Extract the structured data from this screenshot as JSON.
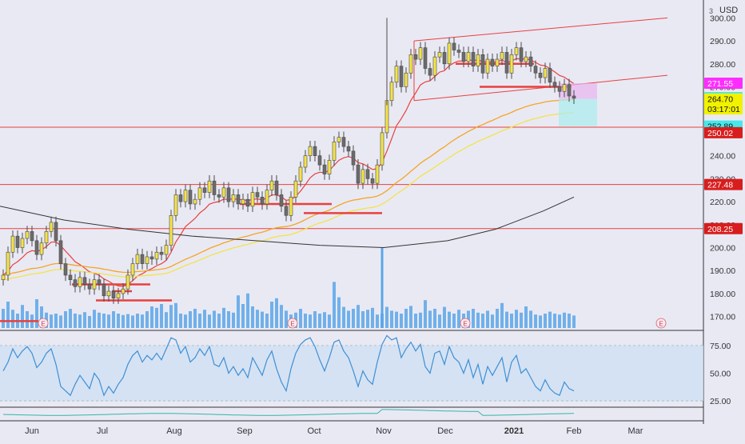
{
  "header": {
    "currency": "USD",
    "scale_mark": "3"
  },
  "colors": {
    "background": "#e9e9f4",
    "up_candle": "#f3e34a",
    "down_candle": "#6b6b6b",
    "ema_short": "#e8413d",
    "ema_mid": "#f5a524",
    "ema_long": "#f3e34a",
    "sma_long": "#333333",
    "trend_channel": "#e8413d",
    "level_line": "#e8413d",
    "volume": "#5aa6e8",
    "rsi_line": "#3d8fd6",
    "rsi_band": "#cfe0f3",
    "macd_line": "#32b6a8",
    "last_price_tag": "#46e8e8",
    "entry_tag": "#f2f200",
    "stop_tag": "#ff2cff",
    "red_tag": "#d81d1d"
  },
  "chart_data": {
    "type": "candlestick",
    "x_axis_labels": [
      "Jun",
      "Jul",
      "Aug",
      "Sep",
      "Oct",
      "Nov",
      "Dec",
      "2021",
      "Feb",
      "Mar"
    ],
    "price_ticks": [
      "300.00",
      "290.00",
      "280.00",
      "270.00",
      "260.00",
      "250.00",
      "240.00",
      "230.00",
      "220.00",
      "210.00",
      "200.00",
      "190.00",
      "180.00",
      "170.00"
    ],
    "price_range": [
      165,
      305
    ],
    "rsi_ticks": [
      "75.00",
      "50.00",
      "25.00"
    ],
    "rsi_range": [
      20,
      85
    ],
    "price_tags": [
      {
        "label": "271.55",
        "price": 271.55,
        "kind": "stop"
      },
      {
        "label": "265.30",
        "price": 265.3,
        "kind": "last"
      },
      {
        "label": "264.70",
        "price": 264.7,
        "kind": "entry"
      },
      {
        "label": "03:17:01",
        "price": 260.4,
        "kind": "countdown"
      },
      {
        "label": "252.89",
        "price": 252.89,
        "kind": "last"
      },
      {
        "label": "250.02",
        "price": 250.02,
        "kind": "red"
      },
      {
        "label": "227.48",
        "price": 227.48,
        "kind": "red"
      },
      {
        "label": "208.25",
        "price": 208.25,
        "kind": "red"
      }
    ],
    "horizontal_levels": [
      252.4,
      227.48,
      208.25
    ],
    "earnings_markers": [
      "E",
      "E",
      "E",
      "E"
    ],
    "candles_close_path": [
      188,
      198,
      205,
      200,
      204,
      207,
      203,
      197,
      202,
      207,
      211,
      203,
      193,
      188,
      186,
      183,
      187,
      184,
      182,
      186,
      184,
      179,
      181,
      178,
      180,
      182,
      188,
      193,
      197,
      193,
      196,
      195,
      198,
      197,
      201,
      214,
      223,
      220,
      225,
      219,
      221,
      226,
      224,
      229,
      223,
      222,
      226,
      220,
      223,
      219,
      221,
      218,
      224,
      222,
      219,
      225,
      229,
      223,
      218,
      214,
      222,
      229,
      235,
      240,
      244,
      240,
      236,
      232,
      238,
      246,
      248,
      244,
      242,
      236,
      228,
      234,
      230,
      228,
      236,
      250,
      264,
      272,
      279,
      270,
      276,
      284,
      282,
      287,
      278,
      275,
      283,
      285,
      280,
      289,
      286,
      285,
      281,
      285,
      279,
      284,
      276,
      282,
      279,
      282,
      285,
      276,
      284,
      287,
      281,
      283,
      279,
      276,
      274,
      278,
      272,
      270,
      268,
      271,
      266,
      265
    ],
    "volume_profile": [
      40,
      55,
      38,
      30,
      48,
      35,
      28,
      60,
      45,
      32,
      28,
      30,
      26,
      35,
      40,
      30,
      28,
      33,
      25,
      38,
      32,
      30,
      28,
      35,
      30,
      27,
      29,
      26,
      30,
      28,
      35,
      45,
      42,
      50,
      33,
      48,
      52,
      30,
      28,
      35,
      40,
      30,
      38,
      28,
      36,
      30,
      42,
      35,
      32,
      68,
      50,
      72,
      45,
      38,
      34,
      30,
      55,
      62,
      48,
      36,
      28,
      32,
      40,
      30,
      28,
      35,
      30,
      33,
      28,
      96,
      64,
      44,
      36,
      40,
      48,
      35,
      38,
      42,
      28,
      30,
      44,
      36,
      34,
      30,
      40,
      46,
      30,
      32,
      58,
      36,
      40,
      28,
      44,
      34,
      30,
      38,
      30,
      36,
      40,
      32,
      30,
      36,
      28,
      40,
      52,
      34,
      30,
      38,
      32,
      45,
      36,
      28,
      26,
      30,
      34,
      30,
      28,
      32,
      30,
      26
    ],
    "rsi_values": [
      52,
      60,
      72,
      64,
      70,
      74,
      68,
      55,
      60,
      68,
      72,
      58,
      38,
      34,
      30,
      40,
      48,
      42,
      36,
      50,
      44,
      30,
      38,
      32,
      40,
      46,
      58,
      66,
      70,
      60,
      66,
      62,
      68,
      62,
      72,
      82,
      80,
      68,
      74,
      60,
      64,
      72,
      66,
      74,
      58,
      56,
      64,
      50,
      56,
      48,
      54,
      46,
      64,
      56,
      48,
      62,
      70,
      54,
      42,
      34,
      54,
      68,
      76,
      80,
      82,
      74,
      62,
      52,
      64,
      78,
      80,
      70,
      64,
      52,
      38,
      52,
      44,
      40,
      60,
      76,
      84,
      80,
      82,
      64,
      72,
      78,
      70,
      76,
      56,
      50,
      68,
      70,
      58,
      74,
      64,
      60,
      50,
      62,
      46,
      58,
      40,
      56,
      48,
      56,
      64,
      42,
      60,
      66,
      50,
      54,
      46,
      38,
      34,
      44,
      36,
      32,
      30,
      42,
      36,
      34
    ]
  }
}
